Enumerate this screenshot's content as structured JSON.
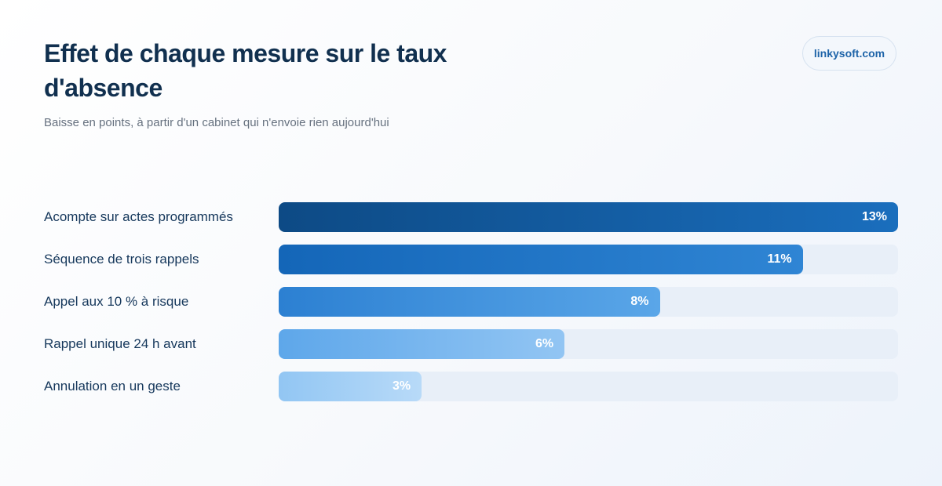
{
  "header": {
    "title": "Effet de chaque mesure sur le taux d'absence",
    "subtitle": "Baisse en points, à partir d'un cabinet qui n'envoie rien aujourd'hui",
    "brand": "linkysoft.com"
  },
  "chart_data": {
    "type": "bar",
    "orientation": "horizontal",
    "title": "Effet de chaque mesure sur le taux d'absence",
    "subtitle": "Baisse en points, à partir d'un cabinet qui n'envoie rien aujourd'hui",
    "categories": [
      "Acompte sur actes programmés",
      "Séquence de trois rappels",
      "Appel aux 10 % à risque",
      "Rappel unique 24 h avant",
      "Annulation en un geste"
    ],
    "values": [
      13,
      11,
      8,
      6,
      3
    ],
    "value_labels": [
      "13%",
      "11%",
      "8%",
      "6%",
      "3%"
    ],
    "xlim": [
      0,
      13
    ],
    "grid": false,
    "legend": "none",
    "colors": {
      "bar_gradients": [
        [
          "#0d4a85",
          "#1a6ebd"
        ],
        [
          "#1466b8",
          "#2f85d4"
        ],
        [
          "#2c80d2",
          "#5aa6e8"
        ],
        [
          "#5ea7ea",
          "#92c5f3"
        ],
        [
          "#92c6f3",
          "#b8daf8"
        ]
      ],
      "track": "#e8eff8",
      "label": "#16385c",
      "title": "#11304f"
    }
  }
}
